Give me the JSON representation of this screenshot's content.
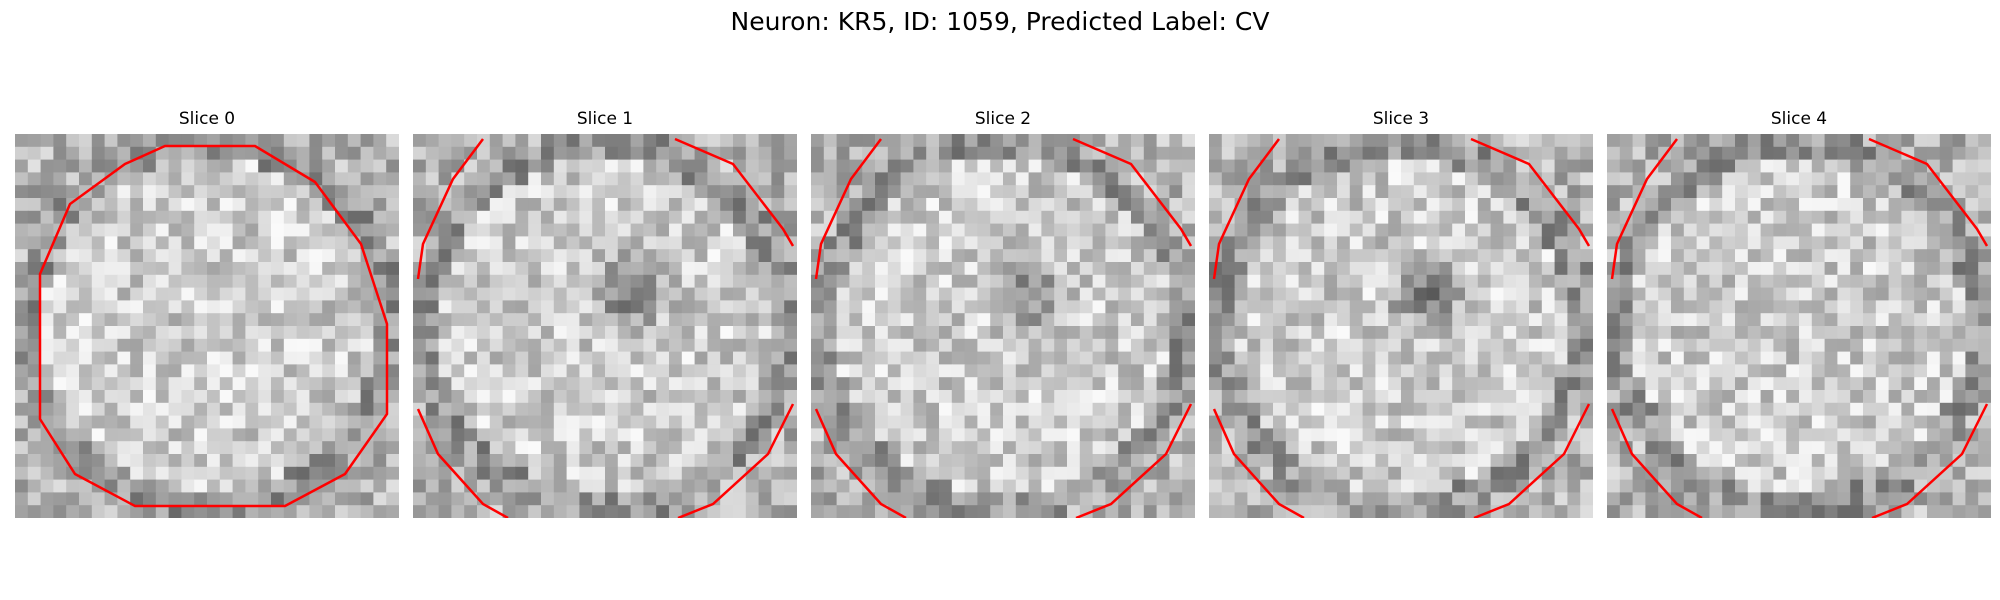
{
  "figure": {
    "title": "Neuron: KR5, ID: 1059, Predicted Label: CV"
  },
  "colormap": "gray",
  "contour_color": "#ff0000",
  "panels": [
    {
      "label": "Slice 0",
      "seed": 11,
      "dark_center": false,
      "ring": "full"
    },
    {
      "label": "Slice 1",
      "seed": 23,
      "dark_center": true,
      "ring": "corners"
    },
    {
      "label": "Slice 2",
      "seed": 37,
      "dark_center": true,
      "ring": "corners"
    },
    {
      "label": "Slice 3",
      "seed": 51,
      "dark_center": true,
      "ring": "corners"
    },
    {
      "label": "Slice 4",
      "seed": 67,
      "dark_center": false,
      "ring": "corners"
    }
  ]
}
